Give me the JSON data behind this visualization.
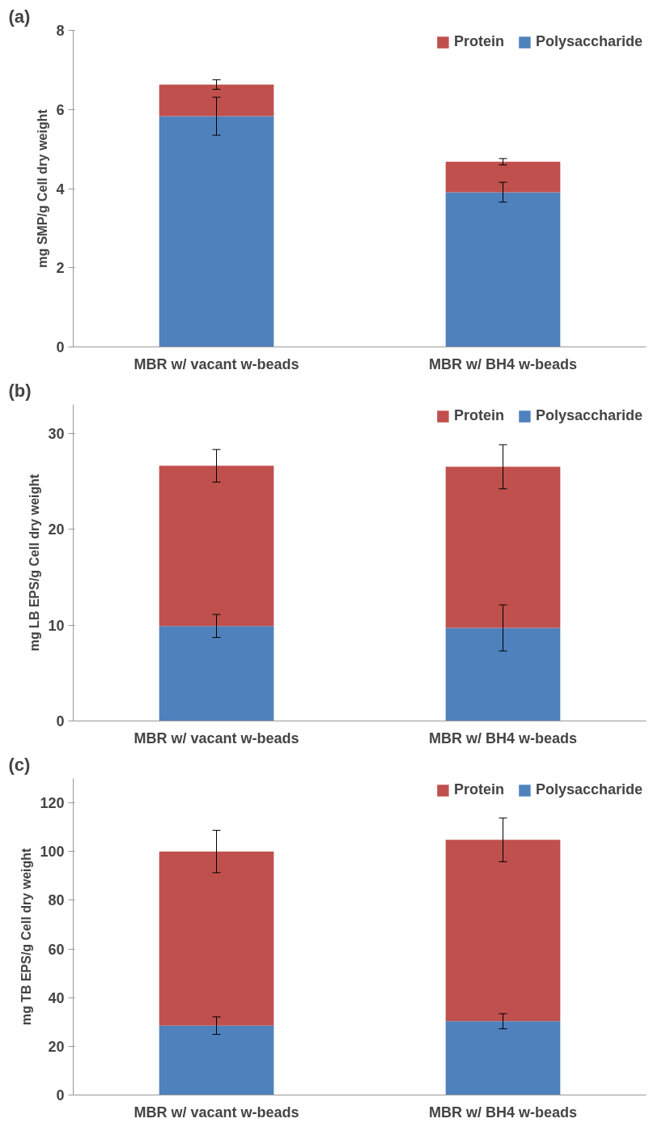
{
  "chart_data": [
    {
      "type": "bar",
      "title": "(a)",
      "ylabel": "mg SMP/g Cell dry weight",
      "categories": [
        "MBR w/ vacant w-beads",
        "MBR w/ BH4 w-beads"
      ],
      "stacked": true,
      "ylim": [
        0,
        8
      ],
      "yticks": [
        0,
        2,
        4,
        6,
        8
      ],
      "grid": false,
      "legend": "top right",
      "series": [
        {
          "name": "Polysaccharide",
          "color": "#4f81bd",
          "values": [
            5.83,
            3.91
          ],
          "errors": [
            0.48,
            0.25
          ]
        },
        {
          "name": "Protein",
          "color": "#c0504d",
          "values": [
            0.8,
            0.77
          ],
          "errors": [
            0.12,
            0.08
          ]
        }
      ]
    },
    {
      "type": "bar",
      "title": "(b)",
      "ylabel": "mg LB EPS/g Cell dry weight",
      "categories": [
        "MBR w/ vacant w-beads",
        "MBR w/ BH4 w-beads"
      ],
      "stacked": true,
      "ylim": [
        0,
        33
      ],
      "yticks": [
        0,
        10,
        20,
        30
      ],
      "grid": false,
      "legend": "top right",
      "series": [
        {
          "name": "Polysaccharide",
          "color": "#4f81bd",
          "values": [
            9.9,
            9.7
          ],
          "errors": [
            1.2,
            2.4
          ]
        },
        {
          "name": "Protein",
          "color": "#c0504d",
          "values": [
            16.7,
            16.8
          ],
          "errors": [
            1.7,
            2.3
          ]
        }
      ]
    },
    {
      "type": "bar",
      "title": "(c)",
      "ylabel": "mg TB EPS/g Cell dry weight",
      "categories": [
        "MBR w/ vacant w-beads",
        "MBR w/ BH4 w-beads"
      ],
      "stacked": true,
      "ylim": [
        0,
        130
      ],
      "yticks": [
        0,
        20,
        40,
        60,
        80,
        100,
        120
      ],
      "grid": false,
      "legend": "top right",
      "series": [
        {
          "name": "Polysaccharide",
          "color": "#4f81bd",
          "values": [
            28.5,
            30.3
          ],
          "errors": [
            3.6,
            3.1
          ]
        },
        {
          "name": "Protein",
          "color": "#c0504d",
          "values": [
            71.5,
            74.5
          ],
          "errors": [
            8.7,
            9.0
          ]
        }
      ]
    }
  ]
}
